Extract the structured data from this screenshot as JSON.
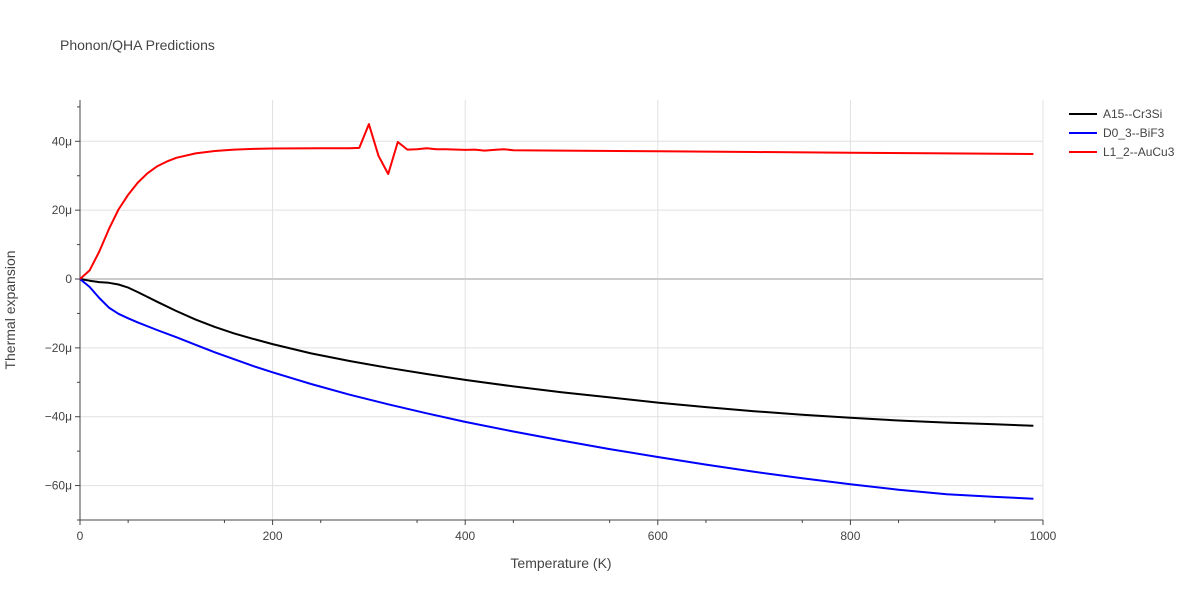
{
  "chart_data": {
    "type": "line",
    "title": "Phonon/QHA Predictions",
    "xlabel": "Temperature (K)",
    "ylabel": "Thermal expansion",
    "xlim": [
      0,
      1000
    ],
    "ylim": [
      -70,
      52
    ],
    "x_ticks": [
      0,
      200,
      400,
      600,
      800,
      1000
    ],
    "x_tick_labels": [
      "0",
      "200",
      "400",
      "600",
      "800",
      "1000"
    ],
    "y_ticks": [
      -60,
      -40,
      -20,
      0,
      20,
      40
    ],
    "y_tick_labels": [
      "−60μ",
      "−40μ",
      "−20μ",
      "0",
      "20μ",
      "40μ"
    ],
    "grid": true,
    "legend_position": "top-right",
    "series": [
      {
        "name": "A15--Cr3Si",
        "color": "#000000",
        "x": [
          0,
          10,
          20,
          30,
          40,
          50,
          60,
          70,
          80,
          100,
          120,
          140,
          160,
          180,
          200,
          240,
          280,
          320,
          360,
          400,
          450,
          500,
          550,
          600,
          650,
          700,
          750,
          800,
          850,
          900,
          950,
          990
        ],
        "y": [
          0,
          -0.5,
          -0.9,
          -1.1,
          -1.6,
          -2.5,
          -3.8,
          -5.2,
          -6.6,
          -9.3,
          -11.8,
          -13.9,
          -15.8,
          -17.4,
          -18.9,
          -21.6,
          -23.8,
          -25.8,
          -27.6,
          -29.3,
          -31.2,
          -32.9,
          -34.4,
          -35.9,
          -37.2,
          -38.4,
          -39.4,
          -40.3,
          -41.1,
          -41.7,
          -42.2,
          -42.6
        ]
      },
      {
        "name": "D0_3--BiF3",
        "color": "#0000ff",
        "x": [
          0,
          10,
          20,
          30,
          40,
          50,
          60,
          80,
          100,
          120,
          140,
          160,
          180,
          200,
          240,
          280,
          320,
          360,
          400,
          450,
          500,
          550,
          600,
          650,
          700,
          750,
          800,
          850,
          900,
          950,
          990
        ],
        "y": [
          0,
          -2.3,
          -5.5,
          -8.3,
          -10.1,
          -11.4,
          -12.6,
          -14.8,
          -16.9,
          -19.1,
          -21.3,
          -23.3,
          -25.3,
          -27.1,
          -30.5,
          -33.6,
          -36.4,
          -39.0,
          -41.5,
          -44.3,
          -46.9,
          -49.4,
          -51.7,
          -53.9,
          -56.0,
          -57.9,
          -59.6,
          -61.2,
          -62.5,
          -63.3,
          -63.8
        ]
      },
      {
        "name": "L1_2--AuCu3",
        "color": "#ff0000",
        "x": [
          0,
          10,
          20,
          30,
          40,
          50,
          60,
          70,
          80,
          90,
          100,
          120,
          140,
          160,
          180,
          200,
          250,
          280,
          290,
          300,
          310,
          320,
          330,
          340,
          350,
          360,
          370,
          380,
          400,
          410,
          420,
          430,
          440,
          450,
          500,
          600,
          700,
          800,
          900,
          990
        ],
        "y": [
          0,
          2.5,
          8.0,
          14.5,
          20.2,
          24.5,
          28.0,
          30.7,
          32.7,
          34.1,
          35.2,
          36.5,
          37.2,
          37.6,
          37.8,
          37.9,
          38.0,
          38.0,
          38.1,
          45.0,
          35.8,
          30.5,
          39.8,
          37.6,
          37.7,
          38.0,
          37.7,
          37.7,
          37.5,
          37.6,
          37.3,
          37.5,
          37.7,
          37.4,
          37.3,
          37.1,
          36.9,
          36.7,
          36.5,
          36.3
        ]
      }
    ]
  }
}
